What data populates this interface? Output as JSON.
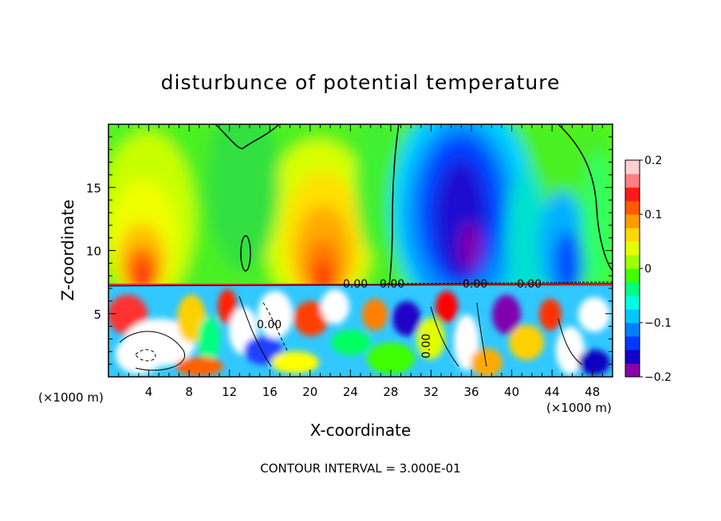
{
  "chart_data": {
    "type": "heatmap",
    "title": "disturbunce of potential temperature",
    "xlabel": "X-coordinate",
    "ylabel": "Z-coordinate",
    "x_unit": "(×1000 m)",
    "x_unit_right": "(×1000 m)",
    "xlim": [
      0,
      50
    ],
    "ylim": [
      0,
      20
    ],
    "x_ticks": [
      4,
      8,
      12,
      16,
      20,
      24,
      28,
      32,
      36,
      40,
      44,
      48
    ],
    "y_ticks": [
      5,
      10,
      15
    ],
    "colorbar": {
      "range": [
        -0.2,
        0.2
      ],
      "tick_labels": [
        "0.2",
        "0.1",
        "0",
        "−0.1",
        "−0.2"
      ],
      "tick_values": [
        0.2,
        0.1,
        0,
        -0.1,
        -0.2
      ],
      "colors": [
        "#8b00a8",
        "#1400c8",
        "#0038ff",
        "#0080ff",
        "#00c8ff",
        "#00ffe0",
        "#00ff80",
        "#40ff00",
        "#a0ff00",
        "#e6ff00",
        "#ffd800",
        "#ff9c00",
        "#ff5a00",
        "#ff1a1a",
        "#ff8080",
        "#ffd0d0"
      ]
    },
    "contour_labels": [
      "0.00",
      "0.00",
      "0.00",
      "0.00",
      "0.00",
      "0.00"
    ],
    "footer": "CONTOUR INTERVAL = 3.000E-01",
    "grid": false
  }
}
